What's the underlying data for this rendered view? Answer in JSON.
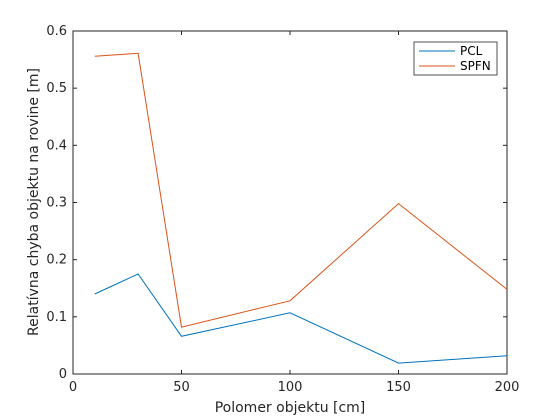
{
  "chart_data": {
    "type": "line",
    "title": "",
    "xlabel": "Polomer objektu [cm]",
    "ylabel": "Relatívna chyba objektu na rovine [m]",
    "xlim": [
      0,
      200
    ],
    "ylim": [
      0,
      0.6
    ],
    "xticks": [
      "0",
      "50",
      "100",
      "150",
      "200"
    ],
    "yticks": [
      "0",
      "0.1",
      "0.2",
      "0.3",
      "0.4",
      "0.5",
      "0.6"
    ],
    "grid": false,
    "legend_position": "top-right",
    "x": [
      10,
      30,
      50,
      100,
      150,
      200
    ],
    "series": [
      {
        "name": "PCL",
        "color": "#0072BD",
        "values": [
          0.14,
          0.175,
          0.066,
          0.107,
          0.019,
          0.032
        ]
      },
      {
        "name": "SPFN",
        "color": "#D95319",
        "values": [
          0.556,
          0.561,
          0.082,
          0.128,
          0.298,
          0.148
        ]
      }
    ]
  }
}
